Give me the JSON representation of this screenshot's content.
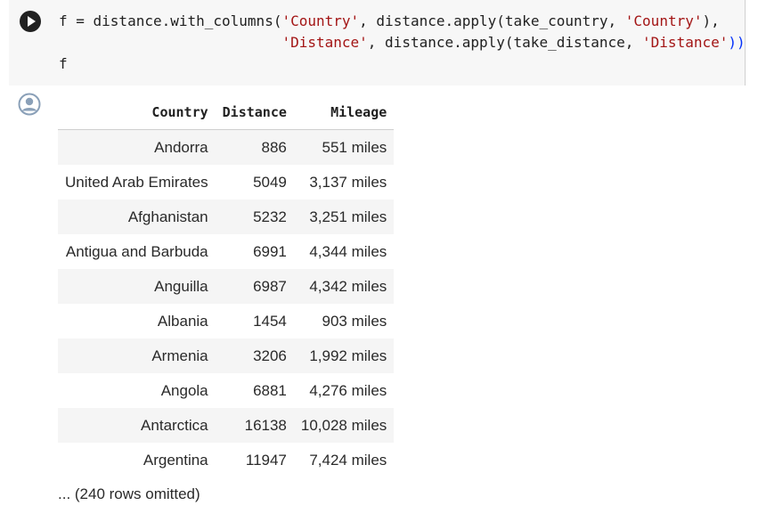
{
  "code": {
    "line1_prefix": "f = distance.with_columns(",
    "line1_str1": "'Country'",
    "line1_mid": ", distance.apply(take_country, ",
    "line1_str2": "'Country'",
    "line1_suffix": "),",
    "line2_indent": "                          ",
    "line2_str1": "'Distance'",
    "line2_mid": ", distance.apply(take_distance, ",
    "line2_str2": "'Distance'",
    "line2_suffix": "))",
    "line3": "f"
  },
  "table": {
    "headers": [
      "Country",
      "Distance",
      "Mileage"
    ],
    "rows": [
      [
        "Andorra",
        "886",
        "551 miles"
      ],
      [
        "United Arab Emirates",
        "5049",
        "3,137 miles"
      ],
      [
        "Afghanistan",
        "5232",
        "3,251 miles"
      ],
      [
        "Antigua and Barbuda",
        "6991",
        "4,344 miles"
      ],
      [
        "Anguilla",
        "6987",
        "4,342 miles"
      ],
      [
        "Albania",
        "1454",
        "903 miles"
      ],
      [
        "Armenia",
        "3206",
        "1,992 miles"
      ],
      [
        "Angola",
        "6881",
        "4,276 miles"
      ],
      [
        "Antarctica",
        "16138",
        "10,028 miles"
      ],
      [
        "Argentina",
        "11947",
        "7,424 miles"
      ]
    ]
  },
  "omitted": "... (240 rows omitted)",
  "icons": {
    "run": "play-icon",
    "output": "user-circle-icon"
  }
}
